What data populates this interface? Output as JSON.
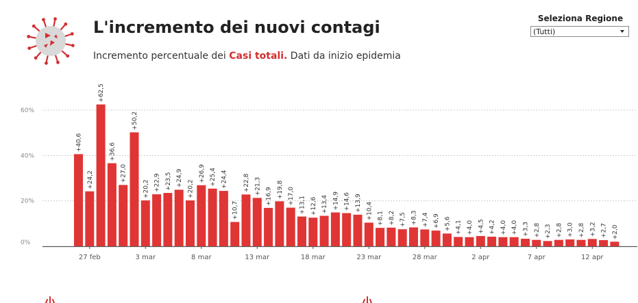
{
  "header": {
    "title": "L'incremento dei nuovi contagi",
    "subtitle_prefix": "Incremento percentuale dei ",
    "subtitle_highlight": "Casi totali.",
    "subtitle_suffix": " Dati da inizio epidemia"
  },
  "region": {
    "label": "Seleziona Regione",
    "selected": "(Tutti)"
  },
  "colors": {
    "bar": "#e03535",
    "highlight": "#d32f2f",
    "grid": "#cccccc",
    "axis": "#555555"
  },
  "icons": {
    "logo": "virus-icon",
    "dropdown": "chevron-down-icon"
  },
  "chart_data": {
    "type": "bar",
    "title": "",
    "xlabel": "",
    "ylabel": "",
    "ylim": [
      0,
      70
    ],
    "yticks": [
      0,
      20,
      40,
      60
    ],
    "ytick_labels": [
      "0%",
      "20%",
      "40%",
      "60%"
    ],
    "grid": true,
    "values": [
      40.6,
      24.2,
      62.5,
      36.6,
      27.0,
      50.2,
      20.2,
      22.9,
      23.5,
      24.9,
      20.2,
      26.9,
      25.4,
      24.4,
      10.7,
      22.8,
      21.3,
      16.9,
      19.8,
      17.0,
      13.1,
      12.6,
      13.4,
      14.9,
      14.6,
      13.9,
      10.4,
      8.1,
      8.2,
      7.5,
      8.3,
      7.4,
      6.9,
      5.6,
      4.1,
      4.0,
      4.5,
      4.2,
      4.0,
      4.0,
      3.3,
      2.8,
      2.3,
      2.8,
      3.0,
      2.8,
      3.2,
      2.7,
      2.0
    ],
    "value_labels": [
      "+40,6",
      "+24,2",
      "+62,5",
      "+36,6",
      "+27,0",
      "+50,2",
      "+20,2",
      "+22,9",
      "+23,5",
      "+24,9",
      "+20,2",
      "+26,9",
      "+25,4",
      "+24,4",
      "+10,7",
      "+22,8",
      "+21,3",
      "+16,9",
      "+19,8",
      "+17,0",
      "+13,1",
      "+12,6",
      "+13,4",
      "+14,9",
      "+14,6",
      "+13,9",
      "+10,4",
      "+8,1",
      "+8,2",
      "+7,5",
      "+8,3",
      "+7,4",
      "+6,9",
      "+5,6",
      "+4,1",
      "+4,0",
      "+4,5",
      "+4,2",
      "+4,0",
      "+4,0",
      "+3,3",
      "+2,8",
      "+2,3",
      "+2,8",
      "+3,0",
      "+2,8",
      "+3,2",
      "+2,7",
      "+2,0"
    ],
    "x_ticks": [
      {
        "index": 1,
        "label": "27 feb"
      },
      {
        "index": 6,
        "label": "3 mar"
      },
      {
        "index": 11,
        "label": "8 mar"
      },
      {
        "index": 16,
        "label": "13 mar"
      },
      {
        "index": 21,
        "label": "18 mar"
      },
      {
        "index": 26,
        "label": "23 mar"
      },
      {
        "index": 31,
        "label": "28 mar"
      },
      {
        "index": 36,
        "label": "2 apr"
      },
      {
        "index": 41,
        "label": "7 apr"
      },
      {
        "index": 46,
        "label": "12 apr"
      }
    ]
  }
}
